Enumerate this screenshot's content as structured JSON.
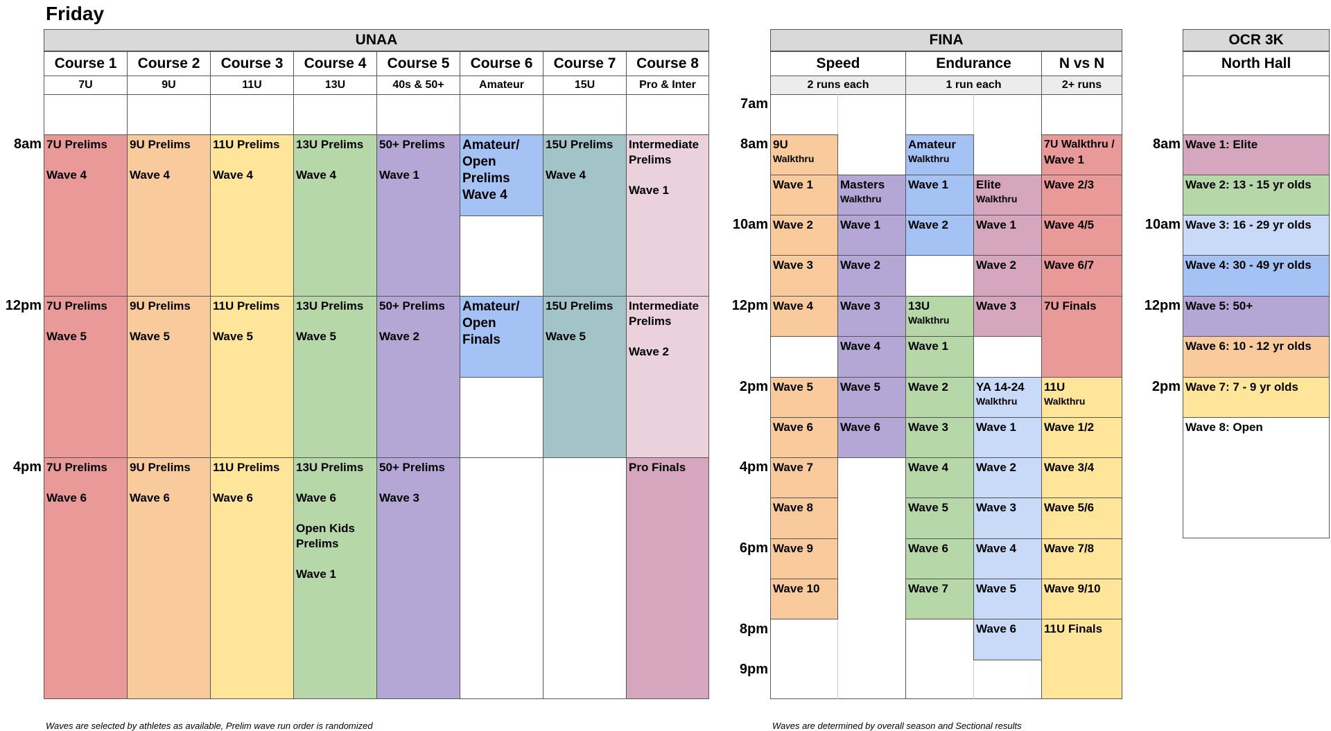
{
  "title": "Friday",
  "unaa": {
    "header": "UNAA",
    "courses": [
      {
        "name": "Course 1",
        "age": "7U"
      },
      {
        "name": "Course 2",
        "age": "9U"
      },
      {
        "name": "Course 3",
        "age": "11U"
      },
      {
        "name": "Course 4",
        "age": "13U"
      },
      {
        "name": "Course 5",
        "age": "40s & 50+"
      },
      {
        "name": "Course 6",
        "age": "Amateur"
      },
      {
        "name": "Course 7",
        "age": "15U"
      },
      {
        "name": "Course 8",
        "age": "Pro & Inter"
      }
    ],
    "times": [
      "8am",
      "12pm",
      "4pm"
    ],
    "cells": {
      "c1a": {
        "t1": "7U Prelims",
        "t2": "Wave 4"
      },
      "c1b": {
        "t1": "7U Prelims",
        "t2": "Wave 5"
      },
      "c1c": {
        "t1": "7U Prelims",
        "t2": "Wave 6"
      },
      "c2a": {
        "t1": "9U Prelims",
        "t2": "Wave 4"
      },
      "c2b": {
        "t1": "9U Prelims",
        "t2": "Wave 5"
      },
      "c2c": {
        "t1": "9U Prelims",
        "t2": "Wave 6"
      },
      "c3a": {
        "t1": "11U Prelims",
        "t2": "Wave 4"
      },
      "c3b": {
        "t1": "11U Prelims",
        "t2": "Wave 5"
      },
      "c3c": {
        "t1": "11U Prelims",
        "t2": "Wave 6"
      },
      "c4a": {
        "t1": "13U Prelims",
        "t2": "Wave 4"
      },
      "c4b": {
        "t1": "13U Prelims",
        "t2": "Wave 5"
      },
      "c4c": {
        "t1": "13U Prelims",
        "t2": "Wave 6",
        "t3": "Open Kids",
        "t4": "Prelims",
        "t5": "Wave 1"
      },
      "c5a": {
        "t1": "50+ Prelims",
        "t2": "Wave 1"
      },
      "c5b": {
        "t1": "50+ Prelims",
        "t2": "Wave 2"
      },
      "c5c": {
        "t1": "50+ Prelims",
        "t2": "Wave 3"
      },
      "c6a": {
        "t1": "Amateur/",
        "t2": "Open",
        "t3": "Prelims",
        "t4": "Wave 4"
      },
      "c6b": {
        "t1": "Amateur/",
        "t2": "Open",
        "t3": "Finals"
      },
      "c7a": {
        "t1": "15U Prelims",
        "t2": "Wave 4"
      },
      "c7b": {
        "t1": "15U Prelims",
        "t2": "Wave 5"
      },
      "c8a": {
        "t1": "Intermediate",
        "t2": "Prelims",
        "t3": "Wave 1"
      },
      "c8b": {
        "t1": "Intermediate",
        "t2": "Prelims",
        "t3": "Wave 2"
      },
      "c8c": {
        "t1": "Pro Finals"
      }
    },
    "note": "Waves are selected by athletes as available, Prelim wave run order is randomized"
  },
  "fina": {
    "header": "FINA",
    "groups": [
      {
        "name": "Speed",
        "sub": "2 runs each"
      },
      {
        "name": "Endurance",
        "sub": "1 run each"
      },
      {
        "name": "N vs N",
        "sub": "2+ runs"
      }
    ],
    "times": [
      "7am",
      "8am",
      "10am",
      "12pm",
      "2pm",
      "4pm",
      "6pm",
      "8pm",
      "9pm"
    ],
    "speed_a": [
      {
        "t": "9U",
        "s": "Walkthru"
      },
      {
        "t": "Wave 1"
      },
      {
        "t": "Wave 2"
      },
      {
        "t": "Wave 3"
      },
      {
        "t": "Wave 4"
      },
      {
        "t": "Wave 5"
      },
      {
        "t": "Wave 6"
      },
      {
        "t": "Wave 7"
      },
      {
        "t": "Wave 8"
      },
      {
        "t": "Wave 9"
      },
      {
        "t": "Wave 10"
      }
    ],
    "speed_b": [
      {
        "t": "Masters",
        "s": "Walkthru"
      },
      {
        "t": "Wave 1"
      },
      {
        "t": "Wave 2"
      },
      {
        "t": "Wave 3"
      },
      {
        "t": "Wave 4"
      },
      {
        "t": "Wave 5"
      },
      {
        "t": "Wave 6"
      }
    ],
    "endurance_a": [
      {
        "t": "Amateur",
        "s": "Walkthru"
      },
      {
        "t": "Wave 1"
      },
      {
        "t": "Wave 2"
      },
      {
        "t": "13U",
        "s": "Walkthru"
      },
      {
        "t": "Wave 1"
      },
      {
        "t": "Wave 2"
      },
      {
        "t": "Wave 3"
      },
      {
        "t": "Wave 4"
      },
      {
        "t": "Wave 5"
      },
      {
        "t": "Wave 6"
      },
      {
        "t": "Wave 7"
      }
    ],
    "endurance_b": [
      {
        "t": "Elite",
        "s": "Walkthru"
      },
      {
        "t": "Wave 1"
      },
      {
        "t": "Wave 2"
      },
      {
        "t": "Wave 3"
      },
      {
        "t": "YA 14-24",
        "s": "Walkthru"
      },
      {
        "t": "Wave 1"
      },
      {
        "t": "Wave 2"
      },
      {
        "t": "Wave 3"
      },
      {
        "t": "Wave 4"
      },
      {
        "t": "Wave 5"
      },
      {
        "t": "Wave 6"
      }
    ],
    "nvn": [
      {
        "t": "7U Walkthru /",
        "t2": "Wave 1"
      },
      {
        "t": "Wave 2/3"
      },
      {
        "t": "Wave 4/5"
      },
      {
        "t": "Wave 6/7"
      },
      {
        "t": "7U Finals"
      },
      {
        "t": "11U",
        "s": "Walkthru"
      },
      {
        "t": "Wave 1/2"
      },
      {
        "t": "Wave 3/4"
      },
      {
        "t": "Wave 5/6"
      },
      {
        "t": "Wave 7/8"
      },
      {
        "t": "Wave 9/10"
      },
      {
        "t": "11U Finals"
      }
    ],
    "note": "Waves are determined by overall season and Sectional results"
  },
  "ocr": {
    "header": "OCR 3K",
    "sub": "North Hall",
    "times": [
      "8am",
      "10am",
      "12pm",
      "2pm"
    ],
    "waves": [
      "Wave 1:  Elite",
      "Wave 2:  13 - 15 yr olds",
      "Wave 3:  16 - 29 yr olds",
      "Wave 4:  30 - 49 yr olds",
      "Wave 5:  50+",
      "Wave 6:  10 - 12 yr olds",
      "Wave 7:  7 - 9 yr olds",
      "Wave 8:  Open"
    ]
  },
  "colors": {
    "red": "#ea9999",
    "orange": "#f9cb9c",
    "yellow": "#ffe599",
    "green": "#b6d7a8",
    "purple": "#b4a7d6",
    "blue": "#a4c2f4",
    "teal": "#a2c4c9",
    "pink": "#ead1dc",
    "mauve": "#d5a6bd",
    "light_blue": "#c9daf8",
    "header_grey": "#d9d9d9"
  }
}
